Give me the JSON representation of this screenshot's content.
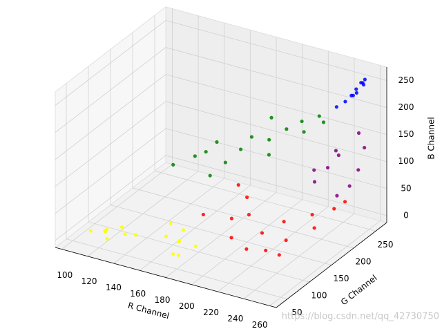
{
  "chart_data": {
    "type": "scatter3d",
    "xlabel": "R Channel",
    "ylabel": "G Channel",
    "zlabel": "B Channel",
    "xlim": [
      95,
      265
    ],
    "xticks": [
      100,
      120,
      140,
      160,
      180,
      200,
      220,
      240,
      260
    ],
    "ylim": [
      25,
      275
    ],
    "yticks": [
      50,
      100,
      150,
      200,
      250
    ],
    "zlim": [
      -13,
      275
    ],
    "zticks": [
      0,
      50,
      100,
      150,
      200,
      250
    ],
    "grid": true,
    "watermark": "https://blog.csdn.net/qq_42730750",
    "series": [
      {
        "color": "#ffff00",
        "x": [
          112,
          118,
          125,
          130,
          122,
          135,
          140,
          128,
          165,
          170,
          178,
          160,
          185,
          172,
          168,
          180
        ],
        "y": [
          55,
          70,
          50,
          80,
          62,
          58,
          75,
          45,
          70,
          85,
          60,
          95,
          78,
          65,
          100,
          55
        ],
        "z": [
          10,
          5,
          20,
          0,
          15,
          30,
          8,
          12,
          25,
          10,
          5,
          30,
          15,
          0,
          20,
          35
        ]
      },
      {
        "color": "#ff0000",
        "x": [
          180,
          195,
          205,
          215,
          210,
          225,
          230,
          220,
          240,
          235,
          250,
          245,
          200,
          190,
          228,
          255
        ],
        "y": [
          110,
          130,
          100,
          140,
          125,
          160,
          150,
          90,
          180,
          120,
          200,
          170,
          150,
          160,
          110,
          210
        ],
        "z": [
          50,
          40,
          30,
          20,
          60,
          35,
          10,
          25,
          45,
          5,
          50,
          30,
          70,
          80,
          15,
          60
        ]
      },
      {
        "color": "#800080",
        "x": [
          235,
          240,
          245,
          250,
          255,
          238,
          248,
          252,
          242,
          258
        ],
        "y": [
          200,
          215,
          225,
          235,
          240,
          190,
          210,
          250,
          230,
          245
        ],
        "z": [
          90,
          110,
          130,
          70,
          100,
          120,
          150,
          160,
          50,
          140
        ]
      },
      {
        "color": "#008000",
        "x": [
          150,
          160,
          170,
          180,
          190,
          200,
          210,
          215,
          220,
          225,
          175,
          185,
          205,
          230,
          195,
          165
        ],
        "y": [
          130,
          150,
          170,
          160,
          190,
          200,
          210,
          230,
          220,
          240,
          140,
          180,
          185,
          235,
          220,
          160
        ],
        "z": [
          110,
          120,
          140,
          115,
          150,
          145,
          165,
          170,
          160,
          180,
          100,
          130,
          130,
          175,
          170,
          125
        ]
      },
      {
        "color": "#0000ff",
        "x": [
          245,
          248,
          250,
          252,
          255,
          240,
          253,
          251,
          247,
          255
        ],
        "y": [
          240,
          245,
          250,
          255,
          250,
          235,
          258,
          248,
          252,
          255
        ],
        "z": [
          220,
          230,
          240,
          250,
          255,
          210,
          245,
          235,
          225,
          258
        ]
      }
    ]
  }
}
